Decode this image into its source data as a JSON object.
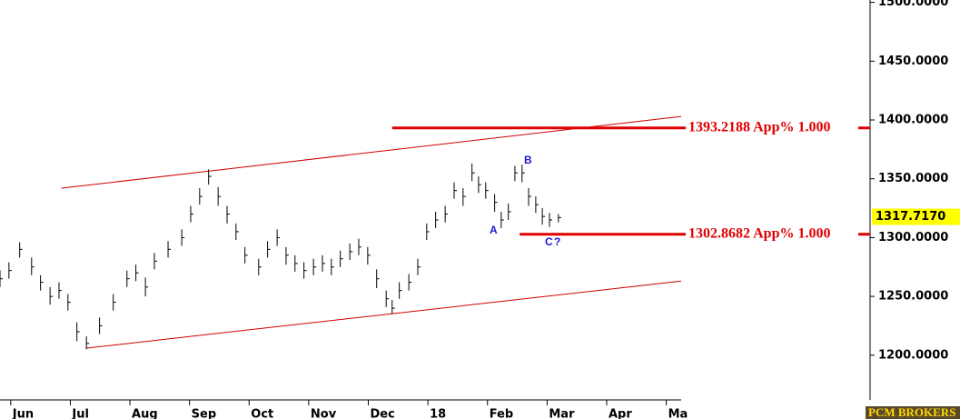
{
  "chart_data": {
    "type": "ohlc",
    "x": [
      -0.18,
      -0.03,
      0.15,
      0.35,
      0.5,
      0.66,
      0.81,
      0.96,
      1.11,
      1.27,
      1.49,
      1.72,
      1.95,
      2.1,
      2.26,
      2.41,
      2.64,
      2.87,
      3.02,
      3.17,
      3.32,
      3.48,
      3.63,
      3.78,
      3.93,
      4.16,
      4.31,
      4.47,
      4.62,
      4.77,
      4.92,
      5.08,
      5.23,
      5.38,
      5.53,
      5.69,
      5.84,
      5.99,
      6.14,
      6.3,
      6.4,
      6.52,
      6.68,
      6.83,
      6.98,
      7.13,
      7.29,
      7.44,
      7.59,
      7.74,
      7.85,
      7.97,
      8.12,
      8.23,
      8.35,
      8.46,
      8.58,
      8.69,
      8.81,
      8.92,
      9.04,
      9.19
    ],
    "high": [
      1272,
      1279,
      1296,
      1283,
      1268,
      1258,
      1262,
      1252,
      1228,
      1216,
      1232,
      1252,
      1272,
      1277,
      1266,
      1287,
      1297,
      1307,
      1327,
      1342,
      1358,
      1343,
      1327,
      1312,
      1292,
      1282,
      1297,
      1307,
      1292,
      1285,
      1279,
      1282,
      1285,
      1282,
      1289,
      1295,
      1299,
      1292,
      1273,
      1255,
      1247,
      1262,
      1269,
      1282,
      1312,
      1322,
      1327,
      1347,
      1342,
      1363,
      1352,
      1347,
      1337,
      1322,
      1329,
      1361,
      1362,
      1342,
      1335,
      1325,
      1321,
      1320
    ],
    "low": [
      1258,
      1265,
      1283,
      1268,
      1255,
      1243,
      1248,
      1238,
      1212,
      1205,
      1218,
      1238,
      1258,
      1263,
      1250,
      1273,
      1283,
      1293,
      1313,
      1328,
      1345,
      1327,
      1312,
      1298,
      1278,
      1268,
      1283,
      1293,
      1277,
      1271,
      1265,
      1268,
      1271,
      1268,
      1275,
      1281,
      1285,
      1277,
      1257,
      1241,
      1235,
      1248,
      1255,
      1268,
      1298,
      1308,
      1313,
      1333,
      1327,
      1348,
      1338,
      1333,
      1322,
      1308,
      1315,
      1348,
      1347,
      1327,
      1321,
      1311,
      1309,
      1313
    ],
    "close": [
      1265,
      1272,
      1290,
      1275,
      1262,
      1250,
      1255,
      1245,
      1220,
      1210,
      1225,
      1245,
      1265,
      1270,
      1258,
      1280,
      1290,
      1300,
      1320,
      1335,
      1352,
      1335,
      1320,
      1305,
      1285,
      1275,
      1290,
      1300,
      1285,
      1278,
      1272,
      1275,
      1278,
      1275,
      1282,
      1288,
      1292,
      1285,
      1265,
      1248,
      1240,
      1255,
      1262,
      1275,
      1305,
      1315,
      1320,
      1340,
      1335,
      1355,
      1345,
      1340,
      1330,
      1315,
      1322,
      1355,
      1355,
      1335,
      1328,
      1318,
      1315,
      1317
    ],
    "color": "#000000",
    "xlim": [
      -0.18,
      11.25
    ],
    "xticks": [
      {
        "value": 0,
        "label": "Jun"
      },
      {
        "value": 1,
        "label": "Jul"
      },
      {
        "value": 2,
        "label": "Aug"
      },
      {
        "value": 3,
        "label": "Sep"
      },
      {
        "value": 4,
        "label": "Oct"
      },
      {
        "value": 5,
        "label": "Nov"
      },
      {
        "value": 6,
        "label": "Dec"
      },
      {
        "value": 7,
        "label": "18"
      },
      {
        "value": 8,
        "label": "Feb"
      },
      {
        "value": 9,
        "label": "Mar"
      },
      {
        "value": 10,
        "label": "Apr"
      },
      {
        "value": 11,
        "label": "Ma"
      }
    ],
    "ylim": [
      1162,
      1502
    ],
    "yticks": [
      {
        "value": 1200,
        "label": "1200.0000"
      },
      {
        "value": 1250,
        "label": "1250.0000"
      },
      {
        "value": 1300,
        "label": "1300.0000"
      },
      {
        "value": 1350,
        "label": "1350.0000"
      },
      {
        "value": 1400,
        "label": "1400.0000"
      },
      {
        "value": 1450,
        "label": "1450.0000"
      },
      {
        "value": 1500,
        "label": "1500.0000"
      }
    ],
    "last_price": {
      "value": 1317.717,
      "label": "1317.7170"
    },
    "channel": {
      "color": "#d00000",
      "lines": [
        {
          "x": [
            0.85,
            11.25
          ],
          "y": [
            1342,
            1403
          ]
        },
        {
          "x": [
            1.27,
            11.25
          ],
          "y": [
            1206,
            1263
          ]
        }
      ]
    },
    "levels": [
      {
        "value": 1393.2188,
        "x_start": 6.4,
        "label": "1393.2188 App% 1.000"
      },
      {
        "value": 1302.8682,
        "x_start": 8.54,
        "label": "1302.8682 App% 1.000"
      }
    ],
    "level_color": "#e00000",
    "annotations": [
      "A",
      "B",
      "C",
      "?"
    ],
    "footer": "PCM BROKERS"
  }
}
